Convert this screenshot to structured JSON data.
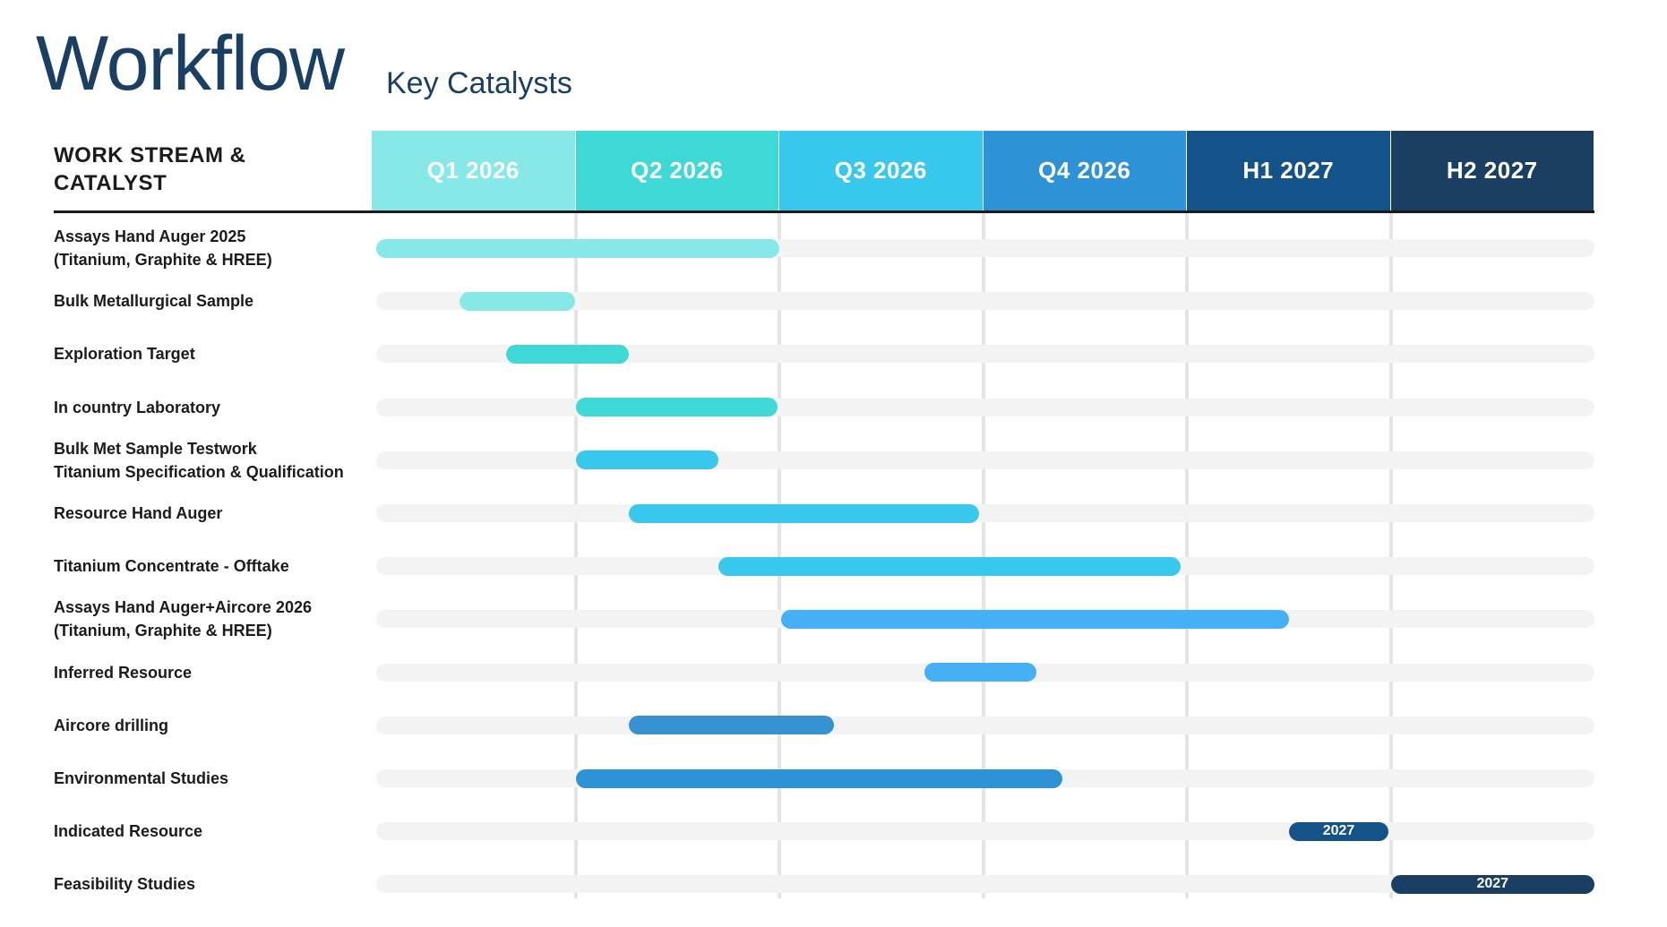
{
  "chart_data": {
    "type": "gantt",
    "title": "Workflow",
    "subtitle": "Key Catalysts",
    "row_header": "WORK STREAM &\nCATALYST",
    "periods": [
      {
        "label": "Q1 2026",
        "color": "#87e8e8"
      },
      {
        "label": "Q2 2026",
        "color": "#3ed8d6"
      },
      {
        "label": "Q3 2026",
        "color": "#38c8ee"
      },
      {
        "label": "Q4 2026",
        "color": "#2e93d6"
      },
      {
        "label": "H1 2027",
        "color": "#14528a"
      },
      {
        "label": "H2 2027",
        "color": "#1a3f63"
      }
    ],
    "tasks": [
      {
        "name": "Assays Hand Auger 2025\n(Titanium, Graphite & HREE)",
        "start": 0.0,
        "end": 2.0,
        "color": "#87e8e8",
        "label": ""
      },
      {
        "name": "Bulk Metallurgical Sample",
        "start": 0.43,
        "end": 1.0,
        "color": "#87e8e8",
        "label": ""
      },
      {
        "name": "Exploration Target",
        "start": 0.66,
        "end": 1.26,
        "color": "#3ed8d6",
        "label": ""
      },
      {
        "name": "In country Laboratory",
        "start": 1.0,
        "end": 1.99,
        "color": "#3ed8d6",
        "label": ""
      },
      {
        "name": "Bulk Met Sample Testwork\nTitanium Specification & Qualification",
        "start": 1.0,
        "end": 1.7,
        "color": "#38c8ee",
        "label": ""
      },
      {
        "name": "Resource Hand Auger",
        "start": 1.26,
        "end": 2.98,
        "color": "#38c8ee",
        "label": ""
      },
      {
        "name": "Titanium Concentrate - Offtake",
        "start": 1.7,
        "end": 3.97,
        "color": "#38c8ee",
        "label": ""
      },
      {
        "name": "Assays Hand Auger+Aircore 2026\n(Titanium, Graphite & HREE)",
        "start": 2.01,
        "end": 4.5,
        "color": "#45b0f5",
        "label": ""
      },
      {
        "name": "Inferred Resource",
        "start": 2.71,
        "end": 3.26,
        "color": "#45b0f5",
        "label": ""
      },
      {
        "name": "Aircore drilling",
        "start": 1.26,
        "end": 2.27,
        "color": "#3792d4",
        "label": ""
      },
      {
        "name": "Environmental Studies",
        "start": 1.0,
        "end": 3.39,
        "color": "#2e93d6",
        "label": ""
      },
      {
        "name": "Indicated Resource",
        "start": 4.5,
        "end": 4.99,
        "color": "#14528a",
        "label": "2027"
      },
      {
        "name": "Feasibility Studies",
        "start": 5.0,
        "end": 6.0,
        "color": "#1a3f63",
        "label": "2027"
      }
    ],
    "track_color": "#f3f3f3",
    "grid": true
  }
}
